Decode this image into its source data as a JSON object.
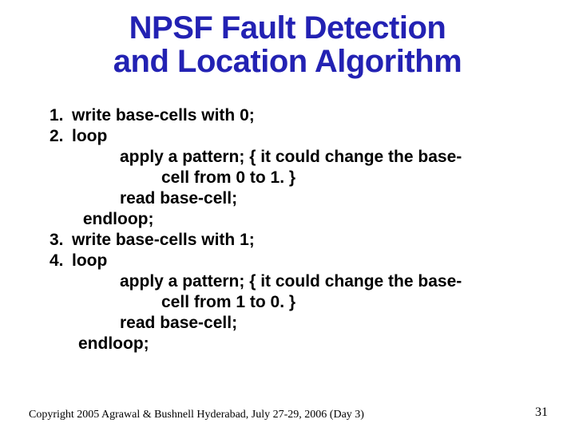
{
  "title": {
    "line1": "NPSF Fault Detection",
    "line2": "and Location Algorithm",
    "fontsize": 40,
    "color": "#2322b3"
  },
  "body": {
    "fontsize": 21,
    "color": "#000000",
    "items": [
      {
        "num": "1.",
        "text": "write base-cells with 0;"
      },
      {
        "num": "2.",
        "text": "loop"
      },
      {
        "indent": 2,
        "text": "apply a pattern; { it could change the base-"
      },
      {
        "indent": 3,
        "text": "cell from 0 to 1. }"
      },
      {
        "indent": 2,
        "text": "read base-cell;"
      },
      {
        "indent": 1,
        "text": " endloop;"
      },
      {
        "num": "3.",
        "text": "write base-cells with 1;"
      },
      {
        "num": "4.",
        "text": "loop"
      },
      {
        "indent": 2,
        "text": "apply a pattern; { it could change the base-"
      },
      {
        "indent": 3,
        "text": "cell from 1 to 0. }"
      },
      {
        "indent": 2,
        "text": "read base-cell;"
      },
      {
        "indent": 1,
        "text": "endloop;"
      }
    ]
  },
  "footer": {
    "text": "Copyright 2005 Agrawal & Bushnell   Hyderabad, July 27-29, 2006 (Day 3)",
    "fontsize": 14
  },
  "pagenum": {
    "text": "31",
    "fontsize": 16
  }
}
